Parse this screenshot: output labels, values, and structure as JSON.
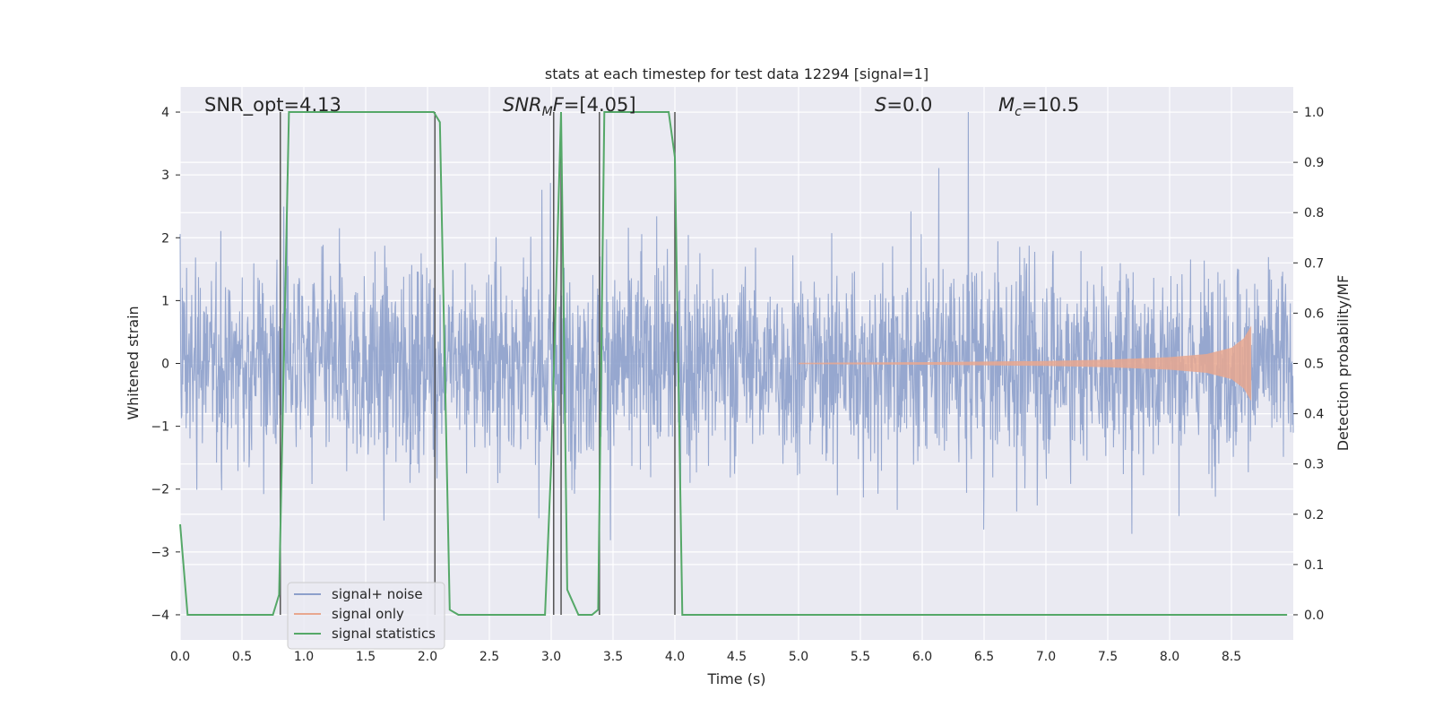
{
  "chart_data": {
    "type": "line",
    "title": "stats at each timestep for test data 12294 [signal=1]",
    "xlabel": "Time (s)",
    "ylabel_left": "Whitened strain",
    "ylabel_right": "Detection probability/MF",
    "xlim": [
      0,
      9
    ],
    "ylim_left": [
      -4.4,
      4.4
    ],
    "ylim_right": [
      -0.05,
      1.05
    ],
    "grid": true,
    "legend_placement": "lower-left",
    "x_ticks": [
      "0.0",
      "0.5",
      "1.0",
      "1.5",
      "2.0",
      "2.5",
      "3.0",
      "3.5",
      "4.0",
      "4.5",
      "5.0",
      "5.5",
      "6.0",
      "6.5",
      "7.0",
      "7.5",
      "8.0",
      "8.5"
    ],
    "y_left_ticks": [
      "−4",
      "−3",
      "−2",
      "−1",
      "0",
      "1",
      "2",
      "3",
      "4"
    ],
    "y_right_ticks": [
      "0.0",
      "0.1",
      "0.2",
      "0.3",
      "0.4",
      "0.5",
      "0.6",
      "0.7",
      "0.8",
      "0.9",
      "1.0"
    ],
    "annotations": {
      "snr_opt": "SNR_opt=4.13",
      "snr_mf_label": "SNR",
      "snr_mf_sub": "M",
      "snr_mf_label2": "F",
      "snr_mf_value": "=[4.05]",
      "s_label": "S",
      "s_value": "=0.0",
      "mc_label": "M",
      "mc_sub": "c",
      "mc_value": "=10.5"
    },
    "series": [
      {
        "name": "signal+ noise",
        "color": "#8da0cb",
        "axis": "left",
        "description_values": {
          "typical_envelope": [
            -2.0,
            2.0
          ],
          "peak_range": [
            -4.0,
            4.0
          ]
        }
      },
      {
        "name": "signal only",
        "color": "#e8a78f",
        "axis": "left",
        "x": [
          5.0,
          6.0,
          7.0,
          7.5,
          8.0,
          8.3,
          8.5,
          8.6,
          8.66
        ],
        "amplitude": [
          0.01,
          0.02,
          0.04,
          0.06,
          0.1,
          0.15,
          0.25,
          0.4,
          0.6
        ]
      },
      {
        "name": "signal statistics",
        "color": "#55a868",
        "axis": "right",
        "x": [
          0.0,
          0.06,
          0.12,
          0.75,
          0.8,
          0.88,
          2.05,
          2.1,
          2.18,
          2.25,
          2.95,
          3.0,
          3.08,
          3.13,
          3.22,
          3.33,
          3.38,
          3.43,
          3.95,
          4.0,
          4.06,
          8.95
        ],
        "y": [
          0.18,
          0.0,
          0.0,
          0.0,
          0.04,
          1.0,
          1.0,
          0.98,
          0.01,
          0.0,
          0.0,
          0.3,
          1.0,
          0.05,
          0.0,
          0.0,
          0.01,
          1.0,
          1.0,
          0.91,
          0.0,
          0.0
        ]
      }
    ],
    "vertical_markers_x": [
      0.81,
      2.06,
      3.02,
      3.08,
      3.39,
      4.0
    ],
    "legend": [
      "signal+ noise",
      "signal only",
      "signal statistics"
    ]
  }
}
